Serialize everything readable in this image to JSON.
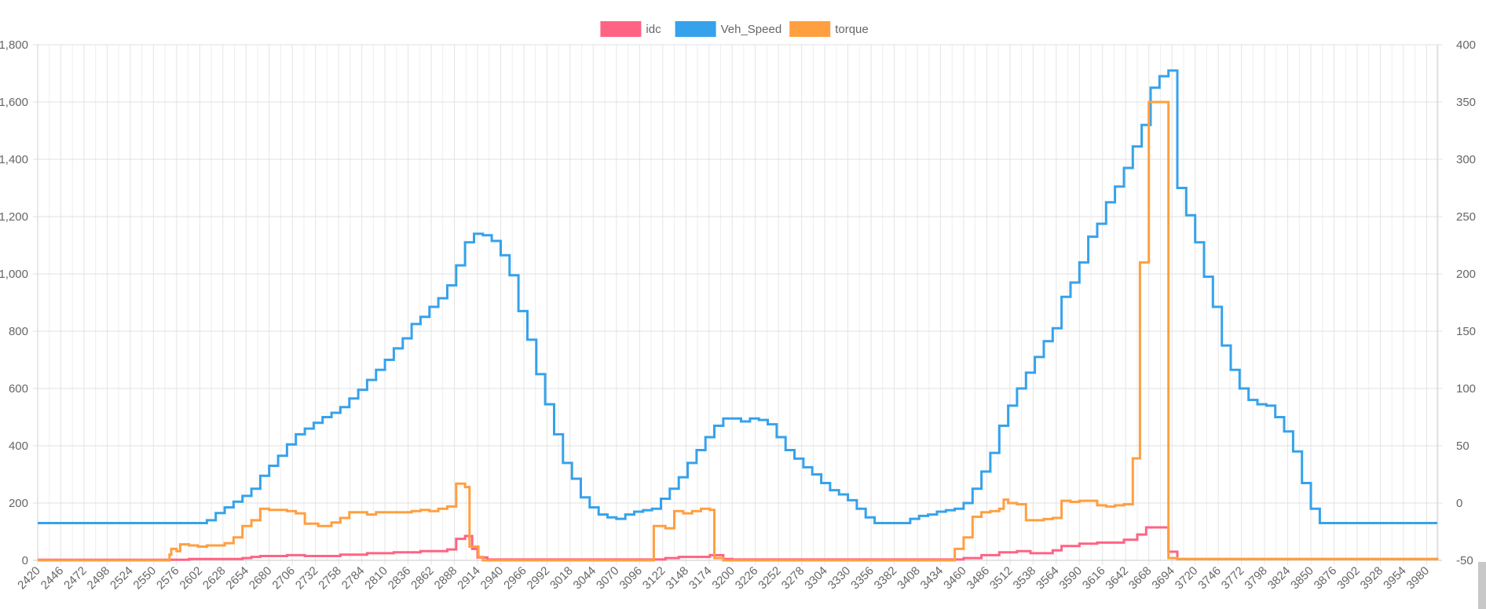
{
  "chart_data": {
    "type": "line",
    "title": "",
    "grid": true,
    "legend": "top-center",
    "legend_entries": [
      "idc",
      "Veh_Speed",
      "torque"
    ],
    "x_ticks": [
      "2420",
      "2446",
      "2472",
      "2498",
      "2524",
      "2550",
      "2576",
      "2602",
      "2628",
      "2654",
      "2680",
      "2706",
      "2732",
      "2758",
      "2784",
      "2810",
      "2836",
      "2862",
      "2888",
      "2914",
      "2940",
      "2966",
      "2992",
      "3018",
      "3044",
      "3070",
      "3096",
      "3122",
      "3148",
      "3174",
      "3200",
      "3226",
      "3252",
      "3278",
      "3304",
      "3330",
      "3356",
      "3382",
      "3408",
      "3434",
      "3460",
      "3486",
      "3512",
      "3538",
      "3564",
      "3590",
      "3616",
      "3642",
      "3668",
      "3694",
      "3720",
      "3746",
      "3772",
      "3798",
      "3824",
      "3850",
      "3876",
      "3902",
      "3928",
      "3954",
      "3980"
    ],
    "xlim": [
      2420,
      3992
    ],
    "y_left": {
      "ticks": [
        "0",
        "200",
        "400",
        "600",
        "800",
        "1,000",
        "1,200",
        "1,400",
        "1,600",
        "1,800"
      ],
      "ylim": [
        0,
        1800
      ]
    },
    "y_right": {
      "ticks": [
        "-50",
        "0",
        "50",
        "100",
        "150",
        "200",
        "250",
        "300",
        "350",
        "400"
      ],
      "ylim": [
        -50,
        400
      ]
    },
    "series": [
      {
        "name": "idc",
        "color": "#ff6384",
        "axis": "left",
        "points": [
          [
            2420,
            2
          ],
          [
            2580,
            2
          ],
          [
            2590,
            5
          ],
          [
            2650,
            8
          ],
          [
            2660,
            12
          ],
          [
            2670,
            15
          ],
          [
            2700,
            18
          ],
          [
            2720,
            15
          ],
          [
            2740,
            15
          ],
          [
            2760,
            20
          ],
          [
            2790,
            25
          ],
          [
            2820,
            28
          ],
          [
            2850,
            32
          ],
          [
            2880,
            38
          ],
          [
            2890,
            75
          ],
          [
            2900,
            85
          ],
          [
            2908,
            40
          ],
          [
            2914,
            10
          ],
          [
            2925,
            3
          ],
          [
            3110,
            3
          ],
          [
            3125,
            8
          ],
          [
            3140,
            12
          ],
          [
            3175,
            18
          ],
          [
            3190,
            5
          ],
          [
            3200,
            3
          ],
          [
            3445,
            3
          ],
          [
            3460,
            8
          ],
          [
            3480,
            18
          ],
          [
            3500,
            28
          ],
          [
            3520,
            32
          ],
          [
            3535,
            25
          ],
          [
            3560,
            35
          ],
          [
            3570,
            50
          ],
          [
            3590,
            58
          ],
          [
            3610,
            62
          ],
          [
            3640,
            72
          ],
          [
            3655,
            90
          ],
          [
            3665,
            115
          ],
          [
            3685,
            115
          ],
          [
            3690,
            30
          ],
          [
            3700,
            5
          ],
          [
            3992,
            3
          ]
        ]
      },
      {
        "name": "Veh_Speed",
        "color": "#36a2eb",
        "axis": "left",
        "points": [
          [
            2420,
            130
          ],
          [
            2600,
            130
          ],
          [
            2610,
            140
          ],
          [
            2620,
            165
          ],
          [
            2630,
            185
          ],
          [
            2640,
            205
          ],
          [
            2650,
            225
          ],
          [
            2660,
            250
          ],
          [
            2670,
            295
          ],
          [
            2680,
            330
          ],
          [
            2690,
            365
          ],
          [
            2700,
            405
          ],
          [
            2710,
            440
          ],
          [
            2720,
            460
          ],
          [
            2730,
            480
          ],
          [
            2740,
            500
          ],
          [
            2750,
            515
          ],
          [
            2760,
            535
          ],
          [
            2770,
            565
          ],
          [
            2780,
            595
          ],
          [
            2790,
            630
          ],
          [
            2800,
            665
          ],
          [
            2810,
            700
          ],
          [
            2820,
            740
          ],
          [
            2830,
            775
          ],
          [
            2840,
            825
          ],
          [
            2850,
            850
          ],
          [
            2860,
            885
          ],
          [
            2870,
            915
          ],
          [
            2880,
            960
          ],
          [
            2890,
            1030
          ],
          [
            2900,
            1110
          ],
          [
            2910,
            1140
          ],
          [
            2920,
            1135
          ],
          [
            2930,
            1115
          ],
          [
            2940,
            1065
          ],
          [
            2950,
            995
          ],
          [
            2960,
            870
          ],
          [
            2970,
            770
          ],
          [
            2980,
            650
          ],
          [
            2990,
            545
          ],
          [
            3000,
            440
          ],
          [
            3010,
            340
          ],
          [
            3020,
            285
          ],
          [
            3030,
            220
          ],
          [
            3040,
            185
          ],
          [
            3050,
            160
          ],
          [
            3060,
            150
          ],
          [
            3070,
            145
          ],
          [
            3080,
            160
          ],
          [
            3090,
            170
          ],
          [
            3100,
            175
          ],
          [
            3110,
            180
          ],
          [
            3120,
            215
          ],
          [
            3130,
            250
          ],
          [
            3140,
            290
          ],
          [
            3150,
            340
          ],
          [
            3160,
            385
          ],
          [
            3170,
            430
          ],
          [
            3180,
            470
          ],
          [
            3190,
            495
          ],
          [
            3200,
            495
          ],
          [
            3210,
            485
          ],
          [
            3220,
            495
          ],
          [
            3230,
            490
          ],
          [
            3240,
            475
          ],
          [
            3250,
            430
          ],
          [
            3260,
            385
          ],
          [
            3270,
            355
          ],
          [
            3280,
            325
          ],
          [
            3290,
            300
          ],
          [
            3300,
            270
          ],
          [
            3310,
            245
          ],
          [
            3320,
            230
          ],
          [
            3330,
            210
          ],
          [
            3340,
            180
          ],
          [
            3350,
            150
          ],
          [
            3360,
            130
          ],
          [
            3390,
            130
          ],
          [
            3400,
            145
          ],
          [
            3410,
            155
          ],
          [
            3420,
            160
          ],
          [
            3430,
            170
          ],
          [
            3440,
            175
          ],
          [
            3450,
            180
          ],
          [
            3460,
            200
          ],
          [
            3470,
            250
          ],
          [
            3480,
            310
          ],
          [
            3490,
            375
          ],
          [
            3500,
            470
          ],
          [
            3510,
            540
          ],
          [
            3520,
            600
          ],
          [
            3530,
            655
          ],
          [
            3540,
            710
          ],
          [
            3550,
            765
          ],
          [
            3560,
            810
          ],
          [
            3570,
            920
          ],
          [
            3580,
            970
          ],
          [
            3590,
            1040
          ],
          [
            3600,
            1130
          ],
          [
            3610,
            1175
          ],
          [
            3620,
            1250
          ],
          [
            3630,
            1305
          ],
          [
            3640,
            1370
          ],
          [
            3650,
            1445
          ],
          [
            3660,
            1520
          ],
          [
            3670,
            1650
          ],
          [
            3680,
            1690
          ],
          [
            3690,
            1710
          ],
          [
            3700,
            1300
          ],
          [
            3710,
            1205
          ],
          [
            3720,
            1110
          ],
          [
            3730,
            990
          ],
          [
            3740,
            885
          ],
          [
            3750,
            750
          ],
          [
            3760,
            665
          ],
          [
            3770,
            600
          ],
          [
            3780,
            560
          ],
          [
            3790,
            545
          ],
          [
            3800,
            540
          ],
          [
            3810,
            500
          ],
          [
            3820,
            450
          ],
          [
            3830,
            380
          ],
          [
            3840,
            270
          ],
          [
            3850,
            180
          ],
          [
            3860,
            130
          ],
          [
            3992,
            130
          ]
        ]
      },
      {
        "name": "torque",
        "color": "#ff9f40",
        "axis": "right",
        "points": [
          [
            2420,
            -50
          ],
          [
            2566,
            -50
          ],
          [
            2568,
            -45
          ],
          [
            2570,
            -40
          ],
          [
            2576,
            -42
          ],
          [
            2580,
            -36
          ],
          [
            2590,
            -37
          ],
          [
            2600,
            -38
          ],
          [
            2610,
            -37
          ],
          [
            2630,
            -35
          ],
          [
            2640,
            -30
          ],
          [
            2650,
            -20
          ],
          [
            2660,
            -15
          ],
          [
            2670,
            -5
          ],
          [
            2680,
            -6
          ],
          [
            2700,
            -7
          ],
          [
            2710,
            -9
          ],
          [
            2720,
            -18
          ],
          [
            2735,
            -20
          ],
          [
            2750,
            -17
          ],
          [
            2760,
            -13
          ],
          [
            2770,
            -8
          ],
          [
            2790,
            -10
          ],
          [
            2800,
            -8
          ],
          [
            2820,
            -8
          ],
          [
            2840,
            -7
          ],
          [
            2850,
            -6
          ],
          [
            2860,
            -7
          ],
          [
            2870,
            -5
          ],
          [
            2880,
            -3
          ],
          [
            2890,
            17
          ],
          [
            2900,
            14
          ],
          [
            2905,
            -38
          ],
          [
            2915,
            -47
          ],
          [
            2920,
            -50
          ],
          [
            3110,
            -50
          ],
          [
            3112,
            -20
          ],
          [
            3125,
            -22
          ],
          [
            3135,
            -7
          ],
          [
            3145,
            -9
          ],
          [
            3155,
            -7
          ],
          [
            3165,
            -5
          ],
          [
            3175,
            -6
          ],
          [
            3180,
            -48
          ],
          [
            3190,
            -50
          ],
          [
            3445,
            -50
          ],
          [
            3450,
            -40
          ],
          [
            3460,
            -30
          ],
          [
            3470,
            -12
          ],
          [
            3480,
            -8
          ],
          [
            3490,
            -7
          ],
          [
            3500,
            -5
          ],
          [
            3505,
            3
          ],
          [
            3510,
            0
          ],
          [
            3520,
            -1
          ],
          [
            3530,
            -15
          ],
          [
            3550,
            -14
          ],
          [
            3560,
            -13
          ],
          [
            3570,
            2
          ],
          [
            3580,
            1
          ],
          [
            3590,
            2
          ],
          [
            3610,
            -2
          ],
          [
            3620,
            -3
          ],
          [
            3630,
            -2
          ],
          [
            3640,
            -1
          ],
          [
            3650,
            39
          ],
          [
            3655,
            39
          ],
          [
            3658,
            210
          ],
          [
            3665,
            210
          ],
          [
            3668,
            350
          ],
          [
            3688,
            350
          ],
          [
            3690,
            -48
          ],
          [
            3700,
            -49
          ],
          [
            3992,
            -50
          ]
        ]
      }
    ]
  }
}
